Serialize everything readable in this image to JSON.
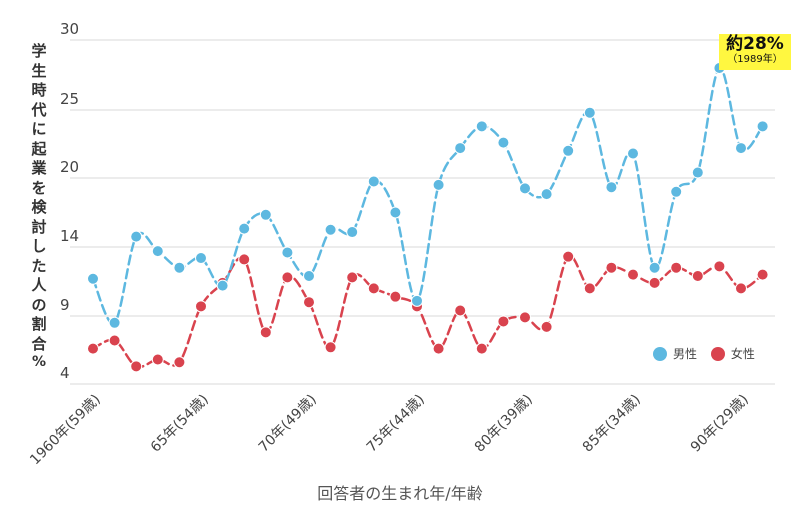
{
  "chart_data": {
    "type": "line",
    "ylabel": "学生時代に起業を検討した人の割合",
    "yunit": "%",
    "xlabel": "回答者の生まれ年/年齢",
    "ytick_labels": [
      "4",
      "9",
      "14",
      "20",
      "25",
      "30"
    ],
    "ylim": [
      4,
      30
    ],
    "x": [
      1960,
      1961,
      1962,
      1963,
      1964,
      1965,
      1966,
      1967,
      1968,
      1969,
      1970,
      1971,
      1972,
      1973,
      1974,
      1975,
      1976,
      1977,
      1978,
      1979,
      1980,
      1981,
      1982,
      1983,
      1984,
      1985,
      1986,
      1987,
      1988,
      1989,
      1990,
      1991
    ],
    "xtick_labels": [
      {
        "x": 1960,
        "label": "1960年(59歳)"
      },
      {
        "x": 1965,
        "label": "65年(54歳)"
      },
      {
        "x": 1970,
        "label": "70年(49歳)"
      },
      {
        "x": 1975,
        "label": "75年(44歳)"
      },
      {
        "x": 1980,
        "label": "80年(39歳)"
      },
      {
        "x": 1985,
        "label": "85年(34歳)"
      },
      {
        "x": 1990,
        "label": "90年(29歳)"
      }
    ],
    "series": [
      {
        "name": "男性",
        "color": "#5db8e0",
        "values": [
          11.7,
          8.5,
          14.9,
          13.7,
          12.5,
          13.2,
          11.2,
          15.6,
          16.8,
          13.6,
          11.9,
          15.5,
          15.3,
          19.7,
          17.0,
          10.1,
          19.4,
          22.2,
          23.8,
          22.6,
          19.1,
          18.6,
          22.0,
          24.8,
          19.2,
          21.8,
          12.5,
          18.8,
          20.4,
          28.0,
          22.2,
          23.8
        ],
        "line_style": "dashed"
      },
      {
        "name": "女性",
        "color": "#d9434e",
        "values": [
          6.6,
          7.2,
          5.3,
          5.8,
          5.6,
          9.7,
          11.4,
          13.1,
          7.8,
          11.8,
          10.0,
          6.7,
          11.8,
          11.0,
          10.4,
          9.7,
          6.6,
          9.4,
          6.6,
          8.6,
          8.9,
          8.2,
          13.3,
          11.0,
          12.5,
          12.0,
          11.4,
          12.5,
          11.9,
          12.6,
          11.0,
          12.0
        ],
        "line_style": "dashed"
      }
    ],
    "annotation": {
      "x": 1989,
      "series": "男性",
      "text": "約28%",
      "subtext": "（1989年）"
    },
    "legend_position": "bottom-right",
    "grid": true
  }
}
